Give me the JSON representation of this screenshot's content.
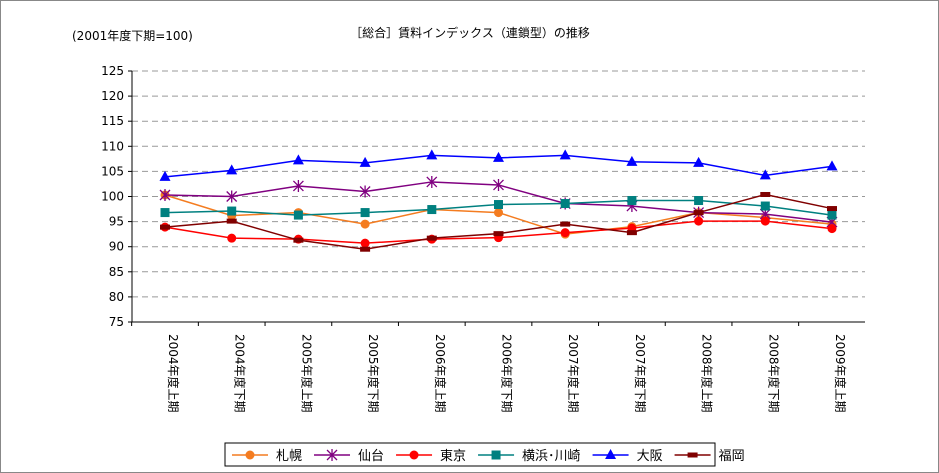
{
  "chart_data": {
    "type": "line",
    "title": "［総合］賃料インデックス（連鎖型）の推移",
    "ylabel": "(2001年度下期=100)",
    "ylim": [
      75,
      125
    ],
    "yticks": [
      75,
      80,
      85,
      90,
      95,
      100,
      105,
      110,
      115,
      120,
      125
    ],
    "grid": true,
    "legend_position": "bottom",
    "categories": [
      "2004年度上期",
      "2004年度下期",
      "2005年度上期",
      "2005年度下期",
      "2006年度上期",
      "2006年度下期",
      "2007年度上期",
      "2007年度下期",
      "2008年度上期",
      "2008年度下期",
      "2009年度上期"
    ],
    "series": [
      {
        "name": "札幌",
        "color": "#F47C20",
        "marker": "circle",
        "values": [
          100.3,
          96.2,
          96.8,
          94.5,
          97.4,
          96.8,
          92.5,
          94.0,
          96.8,
          95.8,
          94.5
        ]
      },
      {
        "name": "仙台",
        "color": "#800080",
        "marker": "asterisk",
        "values": [
          100.3,
          100.0,
          102.1,
          101.0,
          102.9,
          102.3,
          98.6,
          98.1,
          96.8,
          96.5,
          94.9
        ]
      },
      {
        "name": "東京",
        "color": "#FF0000",
        "marker": "circle",
        "values": [
          93.9,
          91.7,
          91.5,
          90.7,
          91.5,
          91.8,
          92.8,
          93.7,
          95.1,
          95.1,
          93.6
        ]
      },
      {
        "name": "横浜･川崎",
        "color": "#008080",
        "marker": "square",
        "values": [
          96.8,
          97.1,
          96.3,
          96.8,
          97.4,
          98.4,
          98.6,
          99.2,
          99.2,
          98.1,
          96.3
        ]
      },
      {
        "name": "大阪",
        "color": "#0000FF",
        "marker": "triangle",
        "values": [
          103.9,
          105.2,
          107.2,
          106.7,
          108.2,
          107.7,
          108.2,
          106.9,
          106.7,
          104.2,
          106.0
        ]
      },
      {
        "name": "福岡",
        "color": "#800000",
        "marker": "dash",
        "values": [
          93.9,
          95.1,
          91.3,
          89.5,
          91.7,
          92.6,
          94.5,
          92.8,
          96.8,
          100.4,
          97.6
        ]
      }
    ]
  }
}
